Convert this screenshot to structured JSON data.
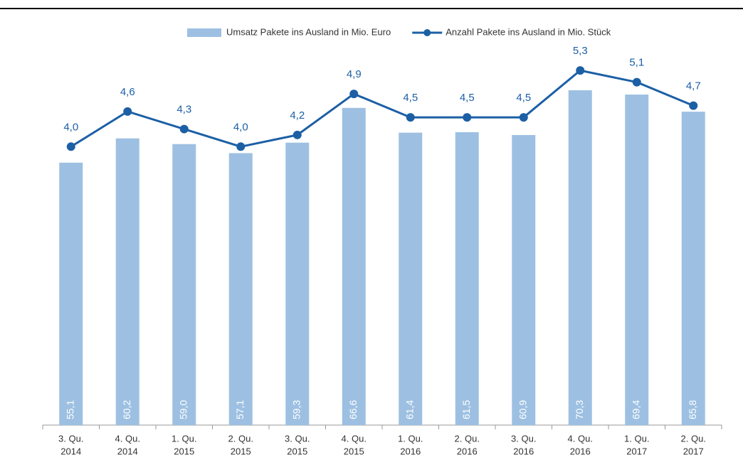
{
  "chart_data": {
    "type": "bar-line",
    "categories": [
      [
        "3. Qu.",
        "2014"
      ],
      [
        "4. Qu.",
        "2014"
      ],
      [
        "1. Qu.",
        "2015"
      ],
      [
        "2. Qu.",
        "2015"
      ],
      [
        "3. Qu.",
        "2015"
      ],
      [
        "4. Qu.",
        "2015"
      ],
      [
        "1. Qu.",
        "2016"
      ],
      [
        "2. Qu.",
        "2016"
      ],
      [
        "3. Qu.",
        "2016"
      ],
      [
        "4. Qu.",
        "2016"
      ],
      [
        "1. Qu.",
        "2017"
      ],
      [
        "2. Qu.",
        "2017"
      ]
    ],
    "series": [
      {
        "name": "Umsatz Pakete ins Ausland in Mio. Euro",
        "type": "bar",
        "color": "#9dc0e2",
        "values": [
          55.1,
          60.2,
          59.0,
          57.1,
          59.3,
          66.6,
          61.4,
          61.5,
          60.9,
          70.3,
          69.4,
          65.8
        ],
        "value_labels": [
          "55,1",
          "60,2",
          "59,0",
          "57,1",
          "59,3",
          "66,6",
          "61,4",
          "61,5",
          "60,9",
          "70,3",
          "69,4",
          "65,8"
        ]
      },
      {
        "name": "Anzahl Pakete ins Ausland in Mio. Stück",
        "type": "line",
        "axis": "y2",
        "color": "#1c5fa5",
        "values": [
          4.0,
          4.6,
          4.3,
          4.0,
          4.2,
          4.9,
          4.5,
          4.5,
          4.5,
          5.3,
          5.1,
          4.7
        ],
        "value_labels": [
          "4,0",
          "4,6",
          "4,3",
          "4,0",
          "4,2",
          "4,9",
          "4,5",
          "4,5",
          "4,5",
          "5,3",
          "5,1",
          "4,7"
        ]
      }
    ],
    "ylim": [
      0,
      80
    ],
    "y2lim": [
      -0.75,
      5.75
    ],
    "legend": "top"
  }
}
